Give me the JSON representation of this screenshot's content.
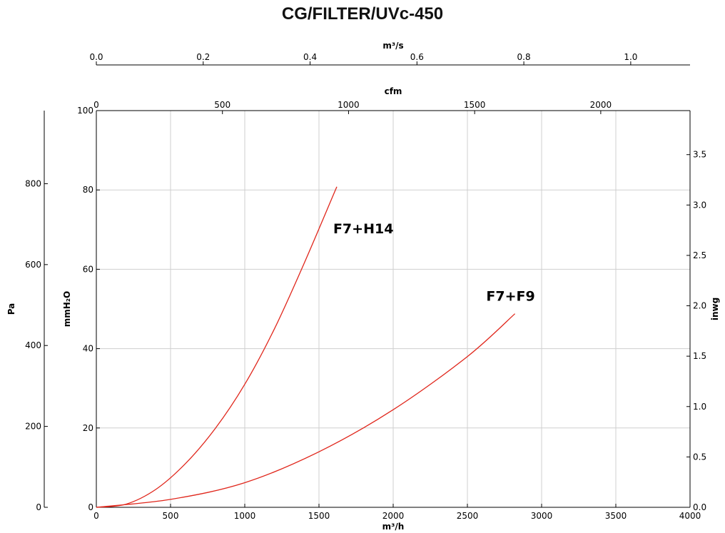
{
  "title": "CG/FILTER/UVc-450",
  "chart_data": {
    "type": "line",
    "title": "CG/FILTER/UVc-450",
    "xlabel": "m³/h",
    "ylabel": "mmH₂O",
    "x_ticks": [
      "0",
      "500",
      "1000",
      "1500",
      "2000",
      "2500",
      "3000",
      "3500",
      "4000"
    ],
    "xlim": [
      0,
      4000
    ],
    "ylim": [
      0,
      100
    ],
    "y_ticks": [
      "0",
      "20",
      "40",
      "60",
      "80",
      "100"
    ],
    "grid": true,
    "secondary_axes": {
      "top_outer": {
        "label": "m³/s",
        "range": [
          0,
          1.111
        ],
        "ticks": [
          "0.0",
          "0.2",
          "0.4",
          "0.6",
          "0.8",
          "1.0"
        ]
      },
      "top_inner": {
        "label": "cfm",
        "range": [
          0,
          2354
        ],
        "ticks": [
          "0",
          "500",
          "1000",
          "1500",
          "2000"
        ]
      },
      "left_outer": {
        "label": "Pa",
        "range": [
          0,
          980.7
        ],
        "ticks": [
          "0",
          "200",
          "400",
          "600",
          "800"
        ]
      },
      "right": {
        "label": "inwg",
        "range": [
          0,
          3.937
        ],
        "ticks": [
          "0.0",
          "0.5",
          "1.0",
          "1.5",
          "2.0",
          "2.5",
          "3.0",
          "3.5"
        ]
      }
    },
    "series": [
      {
        "name": "F7+H14",
        "color": "#e0261b",
        "x": [
          0,
          200,
          400,
          600,
          800,
          1000,
          1200,
          1400,
          1620
        ],
        "y": [
          0,
          0.8,
          4.5,
          11.0,
          19.8,
          31.0,
          45.0,
          61.5,
          80.8
        ]
      },
      {
        "name": "F7+F9",
        "color": "#e0261b",
        "x": [
          0,
          500,
          1000,
          1500,
          2000,
          2500,
          2820
        ],
        "y": [
          0,
          2.0,
          6.2,
          14.0,
          24.6,
          38.0,
          48.8
        ]
      }
    ]
  }
}
